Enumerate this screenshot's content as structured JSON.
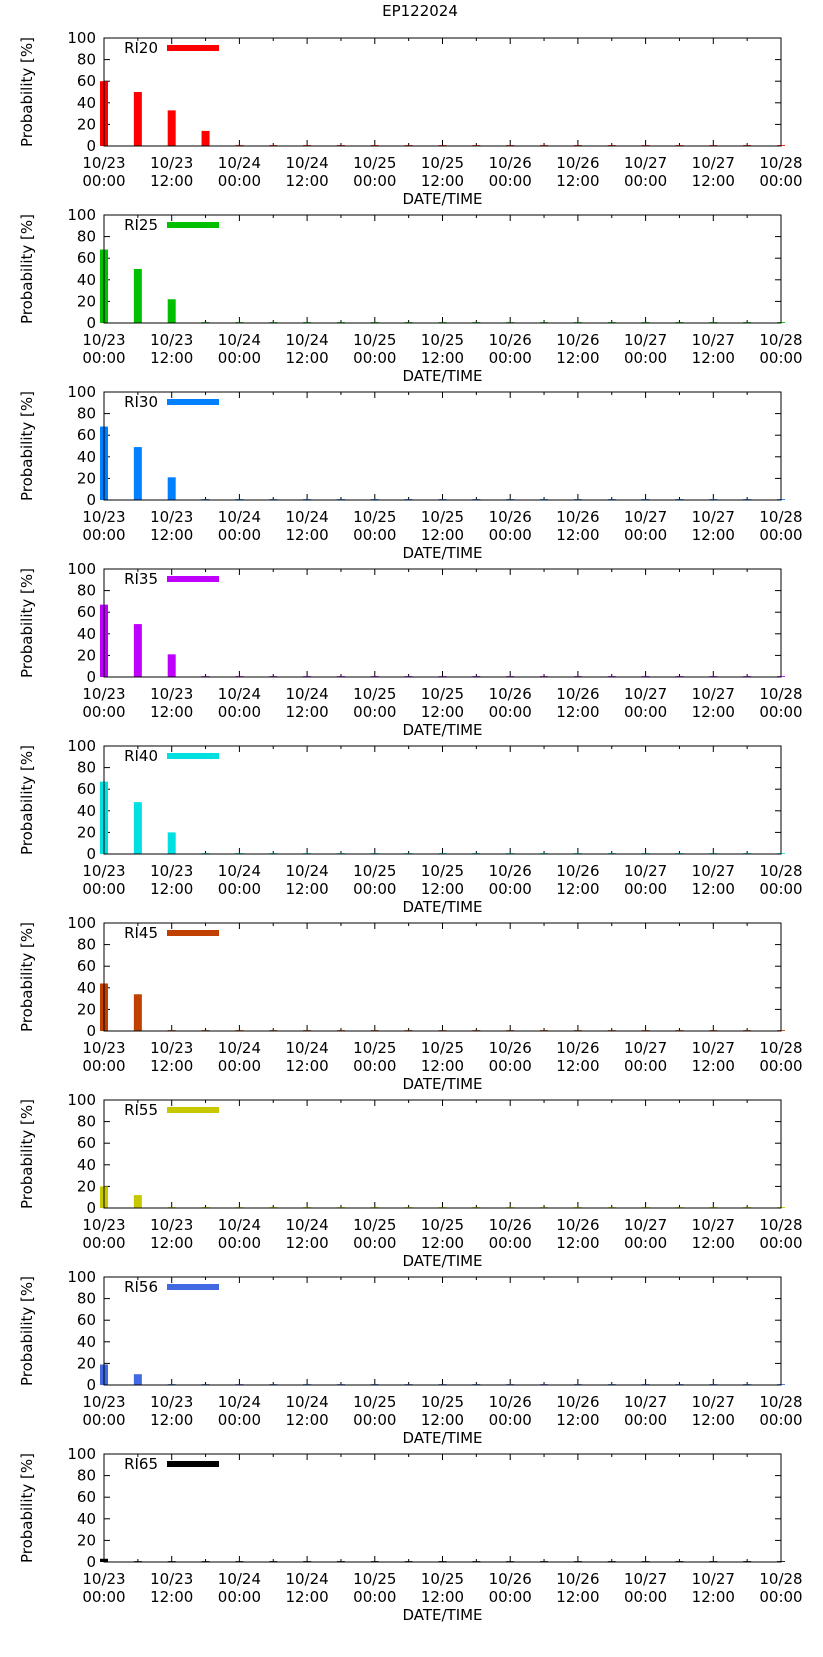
{
  "page_title": "EP122024",
  "chart_data": [
    {
      "type": "bar",
      "label": "RI20",
      "color": "#ff0000",
      "ylabel": "Probability [%]",
      "xlabel": "DATE/TIME",
      "ylim": [
        0,
        100
      ],
      "yticks": [
        0,
        20,
        40,
        60,
        80,
        100
      ],
      "xtick_labels": [
        [
          "10/23",
          "00:00"
        ],
        [
          "10/23",
          "12:00"
        ],
        [
          "10/24",
          "00:00"
        ],
        [
          "10/24",
          "12:00"
        ],
        [
          "10/25",
          "00:00"
        ],
        [
          "10/25",
          "12:00"
        ],
        [
          "10/26",
          "00:00"
        ],
        [
          "10/26",
          "12:00"
        ],
        [
          "10/27",
          "00:00"
        ],
        [
          "10/27",
          "12:00"
        ],
        [
          "10/28",
          "00:00"
        ]
      ],
      "x_hours": [
        0,
        6,
        12,
        18,
        24,
        30,
        36,
        42,
        48,
        54,
        60,
        66,
        72,
        78,
        84,
        90,
        96,
        102,
        108,
        114,
        120
      ],
      "values": [
        60,
        50,
        33,
        14,
        0,
        0,
        0,
        0,
        0,
        0,
        0,
        0,
        0,
        0,
        0,
        0,
        0,
        0,
        0,
        0,
        0
      ]
    },
    {
      "type": "bar",
      "label": "RI25",
      "color": "#00c000",
      "ylabel": "Probability [%]",
      "xlabel": "DATE/TIME",
      "ylim": [
        0,
        100
      ],
      "yticks": [
        0,
        20,
        40,
        60,
        80,
        100
      ],
      "xtick_labels": [
        [
          "10/23",
          "00:00"
        ],
        [
          "10/23",
          "12:00"
        ],
        [
          "10/24",
          "00:00"
        ],
        [
          "10/24",
          "12:00"
        ],
        [
          "10/25",
          "00:00"
        ],
        [
          "10/25",
          "12:00"
        ],
        [
          "10/26",
          "00:00"
        ],
        [
          "10/26",
          "12:00"
        ],
        [
          "10/27",
          "00:00"
        ],
        [
          "10/27",
          "12:00"
        ],
        [
          "10/28",
          "00:00"
        ]
      ],
      "x_hours": [
        0,
        6,
        12,
        18,
        24,
        30,
        36,
        42,
        48,
        54,
        60,
        66,
        72,
        78,
        84,
        90,
        96,
        102,
        108,
        114,
        120
      ],
      "values": [
        68,
        50,
        22,
        0,
        0,
        0,
        0,
        0,
        0,
        0,
        0,
        0,
        0,
        0,
        0,
        0,
        0,
        0,
        0,
        0,
        0
      ]
    },
    {
      "type": "bar",
      "label": "RI30",
      "color": "#0080ff",
      "ylabel": "Probability [%]",
      "xlabel": "DATE/TIME",
      "ylim": [
        0,
        100
      ],
      "yticks": [
        0,
        20,
        40,
        60,
        80,
        100
      ],
      "xtick_labels": [
        [
          "10/23",
          "00:00"
        ],
        [
          "10/23",
          "12:00"
        ],
        [
          "10/24",
          "00:00"
        ],
        [
          "10/24",
          "12:00"
        ],
        [
          "10/25",
          "00:00"
        ],
        [
          "10/25",
          "12:00"
        ],
        [
          "10/26",
          "00:00"
        ],
        [
          "10/26",
          "12:00"
        ],
        [
          "10/27",
          "00:00"
        ],
        [
          "10/27",
          "12:00"
        ],
        [
          "10/28",
          "00:00"
        ]
      ],
      "x_hours": [
        0,
        6,
        12,
        18,
        24,
        30,
        36,
        42,
        48,
        54,
        60,
        66,
        72,
        78,
        84,
        90,
        96,
        102,
        108,
        114,
        120
      ],
      "values": [
        68,
        49,
        21,
        0,
        0,
        0,
        0,
        0,
        0,
        0,
        0,
        0,
        0,
        0,
        0,
        0,
        0,
        0,
        0,
        0,
        0
      ]
    },
    {
      "type": "bar",
      "label": "RI35",
      "color": "#c000ff",
      "ylabel": "Probability [%]",
      "xlabel": "DATE/TIME",
      "ylim": [
        0,
        100
      ],
      "yticks": [
        0,
        20,
        40,
        60,
        80,
        100
      ],
      "xtick_labels": [
        [
          "10/23",
          "00:00"
        ],
        [
          "10/23",
          "12:00"
        ],
        [
          "10/24",
          "00:00"
        ],
        [
          "10/24",
          "12:00"
        ],
        [
          "10/25",
          "00:00"
        ],
        [
          "10/25",
          "12:00"
        ],
        [
          "10/26",
          "00:00"
        ],
        [
          "10/26",
          "12:00"
        ],
        [
          "10/27",
          "00:00"
        ],
        [
          "10/27",
          "12:00"
        ],
        [
          "10/28",
          "00:00"
        ]
      ],
      "x_hours": [
        0,
        6,
        12,
        18,
        24,
        30,
        36,
        42,
        48,
        54,
        60,
        66,
        72,
        78,
        84,
        90,
        96,
        102,
        108,
        114,
        120
      ],
      "values": [
        67,
        49,
        21,
        0,
        0,
        0,
        0,
        0,
        0,
        0,
        0,
        0,
        0,
        0,
        0,
        0,
        0,
        0,
        0,
        0,
        0
      ]
    },
    {
      "type": "bar",
      "label": "RI40",
      "color": "#00e0e0",
      "ylabel": "Probability [%]",
      "xlabel": "DATE/TIME",
      "ylim": [
        0,
        100
      ],
      "yticks": [
        0,
        20,
        40,
        60,
        80,
        100
      ],
      "xtick_labels": [
        [
          "10/23",
          "00:00"
        ],
        [
          "10/23",
          "12:00"
        ],
        [
          "10/24",
          "00:00"
        ],
        [
          "10/24",
          "12:00"
        ],
        [
          "10/25",
          "00:00"
        ],
        [
          "10/25",
          "12:00"
        ],
        [
          "10/26",
          "00:00"
        ],
        [
          "10/26",
          "12:00"
        ],
        [
          "10/27",
          "00:00"
        ],
        [
          "10/27",
          "12:00"
        ],
        [
          "10/28",
          "00:00"
        ]
      ],
      "x_hours": [
        0,
        6,
        12,
        18,
        24,
        30,
        36,
        42,
        48,
        54,
        60,
        66,
        72,
        78,
        84,
        90,
        96,
        102,
        108,
        114,
        120
      ],
      "values": [
        67,
        48,
        20,
        0,
        0,
        0,
        0,
        0,
        0,
        0,
        0,
        0,
        0,
        0,
        0,
        0,
        0,
        0,
        0,
        0,
        0
      ]
    },
    {
      "type": "bar",
      "label": "RI45",
      "color": "#c04000",
      "ylabel": "Probability [%]",
      "xlabel": "DATE/TIME",
      "ylim": [
        0,
        100
      ],
      "yticks": [
        0,
        20,
        40,
        60,
        80,
        100
      ],
      "xtick_labels": [
        [
          "10/23",
          "00:00"
        ],
        [
          "10/23",
          "12:00"
        ],
        [
          "10/24",
          "00:00"
        ],
        [
          "10/24",
          "12:00"
        ],
        [
          "10/25",
          "00:00"
        ],
        [
          "10/25",
          "12:00"
        ],
        [
          "10/26",
          "00:00"
        ],
        [
          "10/26",
          "12:00"
        ],
        [
          "10/27",
          "00:00"
        ],
        [
          "10/27",
          "12:00"
        ],
        [
          "10/28",
          "00:00"
        ]
      ],
      "x_hours": [
        0,
        6,
        12,
        18,
        24,
        30,
        36,
        42,
        48,
        54,
        60,
        66,
        72,
        78,
        84,
        90,
        96,
        102,
        108,
        114,
        120
      ],
      "values": [
        44,
        34,
        0,
        0,
        0,
        0,
        0,
        0,
        0,
        0,
        0,
        0,
        0,
        0,
        0,
        0,
        0,
        0,
        0,
        0,
        0
      ]
    },
    {
      "type": "bar",
      "label": "RI55",
      "color": "#c8c800",
      "ylabel": "Probability [%]",
      "xlabel": "DATE/TIME",
      "ylim": [
        0,
        100
      ],
      "yticks": [
        0,
        20,
        40,
        60,
        80,
        100
      ],
      "xtick_labels": [
        [
          "10/23",
          "00:00"
        ],
        [
          "10/23",
          "12:00"
        ],
        [
          "10/24",
          "00:00"
        ],
        [
          "10/24",
          "12:00"
        ],
        [
          "10/25",
          "00:00"
        ],
        [
          "10/25",
          "12:00"
        ],
        [
          "10/26",
          "00:00"
        ],
        [
          "10/26",
          "12:00"
        ],
        [
          "10/27",
          "00:00"
        ],
        [
          "10/27",
          "12:00"
        ],
        [
          "10/28",
          "00:00"
        ]
      ],
      "x_hours": [
        0,
        6,
        12,
        18,
        24,
        30,
        36,
        42,
        48,
        54,
        60,
        66,
        72,
        78,
        84,
        90,
        96,
        102,
        108,
        114,
        120
      ],
      "values": [
        20,
        12,
        0,
        0,
        0,
        0,
        0,
        0,
        0,
        0,
        0,
        0,
        0,
        0,
        0,
        0,
        0,
        0,
        0,
        0,
        0
      ]
    },
    {
      "type": "bar",
      "label": "RI56",
      "color": "#4169e1",
      "ylabel": "Probability [%]",
      "xlabel": "DATE/TIME",
      "ylim": [
        0,
        100
      ],
      "yticks": [
        0,
        20,
        40,
        60,
        80,
        100
      ],
      "xtick_labels": [
        [
          "10/23",
          "00:00"
        ],
        [
          "10/23",
          "12:00"
        ],
        [
          "10/24",
          "00:00"
        ],
        [
          "10/24",
          "12:00"
        ],
        [
          "10/25",
          "00:00"
        ],
        [
          "10/25",
          "12:00"
        ],
        [
          "10/26",
          "00:00"
        ],
        [
          "10/26",
          "12:00"
        ],
        [
          "10/27",
          "00:00"
        ],
        [
          "10/27",
          "12:00"
        ],
        [
          "10/28",
          "00:00"
        ]
      ],
      "x_hours": [
        0,
        6,
        12,
        18,
        24,
        30,
        36,
        42,
        48,
        54,
        60,
        66,
        72,
        78,
        84,
        90,
        96,
        102,
        108,
        114,
        120
      ],
      "values": [
        19,
        10,
        0,
        0,
        0,
        0,
        0,
        0,
        0,
        0,
        0,
        0,
        0,
        0,
        0,
        0,
        0,
        0,
        0,
        0,
        0
      ]
    },
    {
      "type": "bar",
      "label": "RI65",
      "color": "#000000",
      "ylabel": "Probability [%]",
      "xlabel": "DATE/TIME",
      "ylim": [
        0,
        100
      ],
      "yticks": [
        0,
        20,
        40,
        60,
        80,
        100
      ],
      "xtick_labels": [
        [
          "10/23",
          "00:00"
        ],
        [
          "10/23",
          "12:00"
        ],
        [
          "10/24",
          "00:00"
        ],
        [
          "10/24",
          "12:00"
        ],
        [
          "10/25",
          "00:00"
        ],
        [
          "10/25",
          "12:00"
        ],
        [
          "10/26",
          "00:00"
        ],
        [
          "10/26",
          "12:00"
        ],
        [
          "10/27",
          "00:00"
        ],
        [
          "10/27",
          "12:00"
        ],
        [
          "10/28",
          "00:00"
        ]
      ],
      "x_hours": [
        0,
        6,
        12,
        18,
        24,
        30,
        36,
        42,
        48,
        54,
        60,
        66,
        72,
        78,
        84,
        90,
        96,
        102,
        108,
        114,
        120
      ],
      "values": [
        3,
        0,
        0,
        0,
        0,
        0,
        0,
        0,
        0,
        0,
        0,
        0,
        0,
        0,
        0,
        0,
        0,
        0,
        0,
        0,
        0
      ]
    }
  ]
}
